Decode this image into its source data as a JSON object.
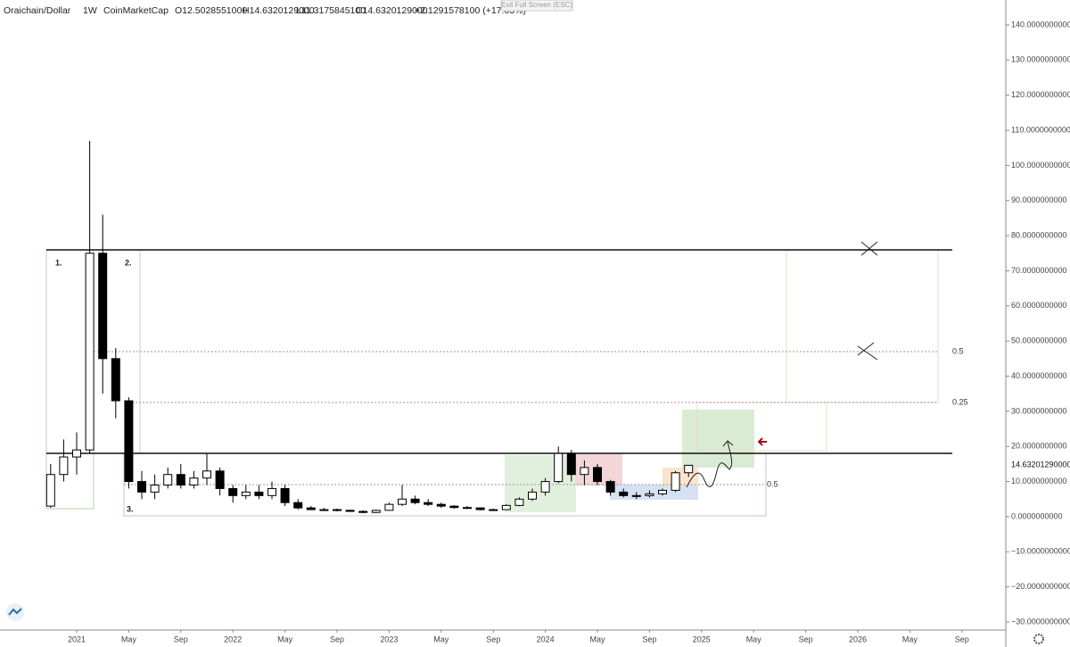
{
  "chart_data": {
    "type": "candlestick",
    "header": {
      "symbol": "Oraichain/Dollar",
      "interval": "1W",
      "source": "CoinMarketCap",
      "open": "O12.5028551000",
      "high": "H14.6320129000",
      "low": "L11.3175845100",
      "close": "C14.6320129000",
      "change": "+2.1291578100 (+17.03%)"
    },
    "tooltip": "Exit Full Screen (ESC)",
    "x": [
      "2020-11",
      "2020-12",
      "2021-01",
      "2021-02",
      "2021-03",
      "2021-04",
      "2021-05",
      "2021-06",
      "2021-07",
      "2021-08",
      "2021-09",
      "2021-10",
      "2021-11",
      "2021-12",
      "2022-01",
      "2022-02",
      "2022-03",
      "2022-04",
      "2022-05",
      "2022-06",
      "2022-07",
      "2022-08",
      "2022-09",
      "2022-10",
      "2022-11",
      "2022-12",
      "2023-01",
      "2023-02",
      "2023-03",
      "2023-04",
      "2023-05",
      "2023-06",
      "2023-07",
      "2023-08",
      "2023-09",
      "2023-10",
      "2023-11",
      "2023-12",
      "2024-01",
      "2024-02",
      "2024-03",
      "2024-04",
      "2024-05",
      "2024-06",
      "2024-07",
      "2024-08",
      "2024-09",
      "2024-10",
      "2024-11",
      "2024-12"
    ],
    "open": [
      3,
      12,
      17,
      19,
      75,
      45,
      33,
      10,
      7,
      9,
      12,
      9,
      11,
      13,
      8,
      6,
      7,
      6,
      8,
      4,
      2.5,
      2,
      2,
      1.8,
      1.5,
      1.2,
      1.8,
      3.5,
      5,
      4,
      3.5,
      3,
      2.6,
      2.5,
      2,
      2,
      3.2,
      5,
      7,
      10,
      18,
      12,
      14,
      10,
      7,
      6,
      6,
      6.5,
      7.5,
      12.5028551
    ],
    "high": [
      15,
      22,
      24,
      107,
      86,
      48,
      34,
      13,
      12,
      14,
      15,
      13,
      18,
      14,
      9,
      9,
      9,
      10,
      9,
      5,
      3,
      2.5,
      2.3,
      2,
      1.8,
      2,
      4,
      9,
      6,
      5,
      4,
      3.3,
      3,
      2.6,
      2.3,
      3.5,
      5.5,
      8,
      11,
      20,
      19,
      16,
      15,
      10.5,
      8,
      7,
      7.5,
      8,
      13,
      14.6320129
    ],
    "low": [
      2.5,
      10,
      12,
      18,
      35,
      28,
      8,
      5,
      5,
      8,
      8,
      8,
      9,
      6,
      4,
      5,
      5,
      5,
      3,
      2,
      2,
      1.7,
      1.5,
      1.4,
      1,
      1,
      1.7,
      3,
      3.5,
      3,
      2.5,
      2.3,
      2.2,
      1.8,
      1.8,
      1.9,
      3,
      4.5,
      6,
      9.5,
      10,
      9,
      9,
      6,
      5.5,
      5,
      5.5,
      6,
      7,
      11.31758451
    ],
    "close": [
      12,
      17,
      19,
      75,
      45,
      33,
      10,
      7,
      9,
      12,
      9,
      11,
      13,
      8,
      6,
      7,
      6,
      8,
      4,
      2.5,
      2,
      2,
      1.8,
      1.5,
      1.2,
      1.8,
      3.5,
      5,
      4,
      3.5,
      3,
      2.6,
      2.5,
      2,
      2,
      3.2,
      5,
      7,
      10,
      18,
      12,
      14,
      10,
      7,
      6,
      6,
      6.5,
      7.5,
      12.5,
      14.6320129
    ],
    "up_color": "#ffffff",
    "down_color": "#000000",
    "ylim": [
      -30,
      140
    ],
    "yticks": [
      {
        "value": 140,
        "label": "140.0000000000"
      },
      {
        "value": 130,
        "label": "130.0000000000"
      },
      {
        "value": 120,
        "label": "120.0000000000"
      },
      {
        "value": 110,
        "label": "110.0000000000"
      },
      {
        "value": 100,
        "label": "100.0000000000"
      },
      {
        "value": 90,
        "label": "90.0000000000"
      },
      {
        "value": 80,
        "label": "80.0000000000"
      },
      {
        "value": 70,
        "label": "70.0000000000"
      },
      {
        "value": 60,
        "label": "60.0000000000"
      },
      {
        "value": 50,
        "label": "50.0000000000"
      },
      {
        "value": 40,
        "label": "40.0000000000"
      },
      {
        "value": 30,
        "label": "30.0000000000"
      },
      {
        "value": 20,
        "label": "20.0000000000"
      },
      {
        "value": 10,
        "label": "10.0000000000"
      },
      {
        "value": 0,
        "label": "0.0000000000"
      },
      {
        "value": -10,
        "label": "−10.0000000000"
      },
      {
        "value": -20,
        "label": "−20.0000000000"
      },
      {
        "value": -30,
        "label": "−30.0000000000"
      }
    ],
    "xticks": [
      {
        "value": "2021-01",
        "label": "2021"
      },
      {
        "value": "2021-05",
        "label": "May"
      },
      {
        "value": "2021-09",
        "label": "Sep"
      },
      {
        "value": "2022-01",
        "label": "2022"
      },
      {
        "value": "2022-05",
        "label": "May"
      },
      {
        "value": "2022-09",
        "label": "Sep"
      },
      {
        "value": "2023-01",
        "label": "2023"
      },
      {
        "value": "2023-05",
        "label": "May"
      },
      {
        "value": "2023-09",
        "label": "Sep"
      },
      {
        "value": "2024-01",
        "label": "2024"
      },
      {
        "value": "2024-05",
        "label": "May"
      },
      {
        "value": "2024-09",
        "label": "Sep"
      },
      {
        "value": "2025-01",
        "label": "2025"
      },
      {
        "value": "2025-05",
        "label": "May"
      },
      {
        "value": "2025-09",
        "label": "Sep"
      },
      {
        "value": "2026-01",
        "label": "2026"
      },
      {
        "value": "2026-05",
        "label": "May"
      },
      {
        "value": "2026-09",
        "label": "Sep"
      }
    ],
    "price_label": {
      "value": 14.6320129,
      "label": "14.63201290000"
    },
    "annotations": [
      "1.",
      "2.",
      "3.",
      "0.5",
      "0.25",
      "0.5"
    ]
  }
}
